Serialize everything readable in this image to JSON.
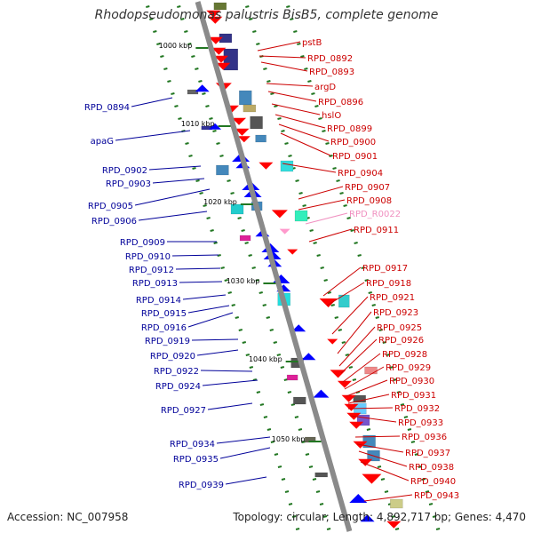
{
  "title": "Rhodopseudomonas palustris BisB5, complete genome",
  "footer": {
    "accession": "Accession: NC_007958",
    "topology": "Topology: circular; Length: 4,892,717 bp; Genes: 4,470"
  },
  "colors": {
    "backbone": "#8a8a8a",
    "left_label": "#000099",
    "right_label": "#cc0000",
    "rna_label": "#f090c0",
    "tick": "#227722"
  },
  "scale_marks": [
    "1000 kbp",
    "1010 kbp",
    "1020 kbp",
    "1030 kbp",
    "1040 kbp",
    "1050 kbp"
  ],
  "left_genes": [
    "RPD_0894",
    "apaG",
    "RPD_0902",
    "RPD_0903",
    "RPD_0905",
    "RPD_0906",
    "RPD_0909",
    "RPD_0910",
    "RPD_0912",
    "RPD_0913",
    "RPD_0914",
    "RPD_0915",
    "RPD_0916",
    "RPD_0919",
    "RPD_0920",
    "RPD_0922",
    "RPD_0924",
    "RPD_0927",
    "RPD_0934",
    "RPD_0935",
    "RPD_0939"
  ],
  "right_genes": [
    "pstB",
    "RPD_0892",
    "RPD_0893",
    "argD",
    "RPD_0896",
    "hslO",
    "RPD_0899",
    "RPD_0900",
    "RPD_0901",
    "RPD_0904",
    "RPD_0907",
    "RPD_0908",
    "RPD_R0022",
    "RPD_0911",
    "RPD_0917",
    "RPD_0918",
    "RPD_0921",
    "RPD_0923",
    "RPD_0925",
    "RPD_0926",
    "RPD_0928",
    "RPD_0929",
    "RPD_0930",
    "RPD_0931",
    "RPD_0932",
    "RPD_0933",
    "RPD_0936",
    "RPD_0937",
    "RPD_0938",
    "RPD_0940",
    "RPD_0943"
  ]
}
